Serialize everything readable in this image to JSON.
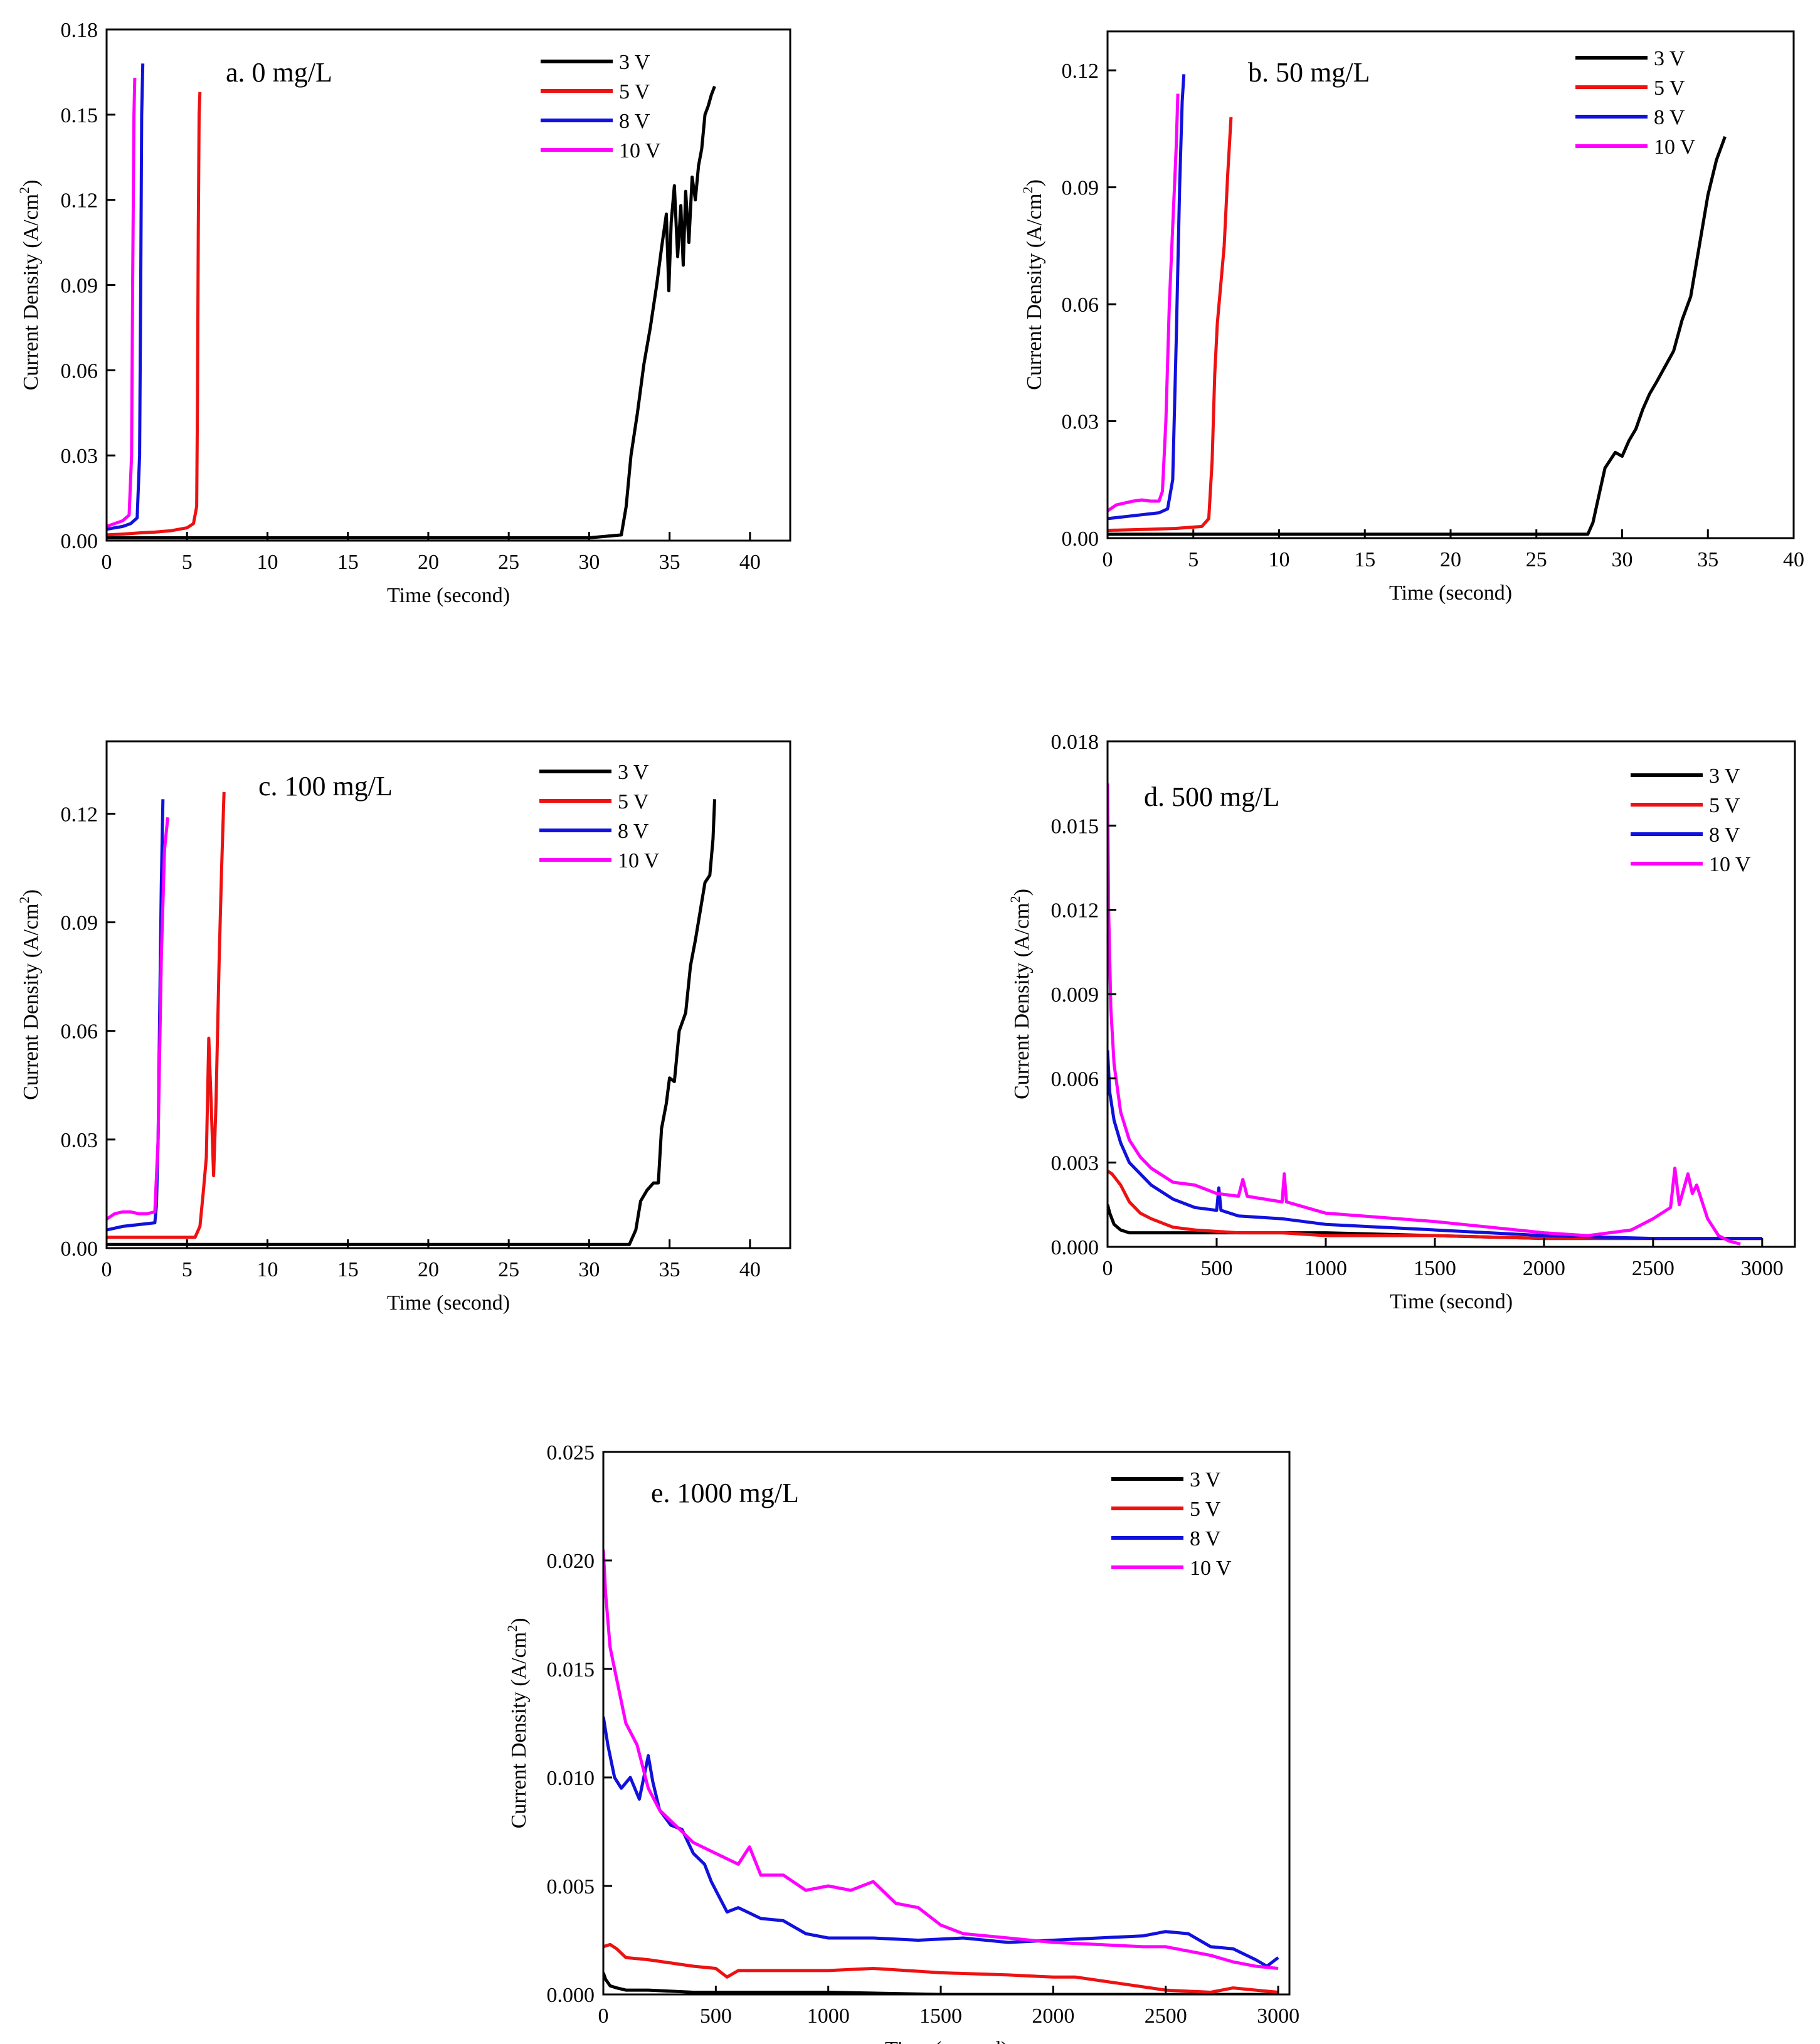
{
  "figure": {
    "line_colors": {
      "3 V": "#000000",
      "5 V": "#ee1111",
      "8 V": "#1111dd",
      "10 V": "#ff00ff"
    }
  },
  "chart_data": [
    {
      "id": "a",
      "type": "line",
      "title": "a. 0 mg/L",
      "xlabel": "Time (second)",
      "ylabel": "Current Density (A/cm",
      "ylabel_sup": "2",
      "ylabel_end": ")",
      "xlim": [
        0,
        42.5
      ],
      "ylim": [
        0,
        0.18
      ],
      "xticks": [
        0,
        5,
        10,
        15,
        20,
        25,
        30,
        35,
        40
      ],
      "xtick_labels": [
        "0",
        "5",
        "10",
        "15",
        "20",
        "25",
        "30",
        "35",
        "40"
      ],
      "yticks": [
        0,
        0.03,
        0.06,
        0.09,
        0.12,
        0.15,
        0.18
      ],
      "ytick_labels": [
        "0.00",
        "0.03",
        "0.06",
        "0.09",
        "0.12",
        "0.15",
        "0.18"
      ],
      "legend": [
        "3 V",
        "5 V",
        "8 V",
        "10 V"
      ],
      "series": [
        {
          "name": "3 V",
          "x": [
            0,
            10,
            20,
            30,
            32.0,
            32.3,
            32.6,
            33.0,
            33.4,
            33.8,
            34.2,
            34.5,
            34.8,
            34.95,
            35.1,
            35.3,
            35.5,
            35.7,
            35.85,
            36.0,
            36.2,
            36.4,
            36.6,
            36.8,
            37.0,
            37.2,
            37.4,
            37.6,
            37.8
          ],
          "y": [
            0.001,
            0.001,
            0.001,
            0.001,
            0.002,
            0.012,
            0.03,
            0.045,
            0.062,
            0.075,
            0.09,
            0.103,
            0.115,
            0.088,
            0.112,
            0.125,
            0.1,
            0.118,
            0.097,
            0.123,
            0.105,
            0.128,
            0.12,
            0.132,
            0.138,
            0.15,
            0.153,
            0.157,
            0.16
          ]
        },
        {
          "name": "5 V",
          "x": [
            0,
            1,
            2,
            3,
            4,
            5,
            5.4,
            5.6,
            5.65,
            5.7,
            5.75,
            5.8
          ],
          "y": [
            0.002,
            0.0023,
            0.0027,
            0.003,
            0.0035,
            0.0045,
            0.006,
            0.012,
            0.05,
            0.11,
            0.15,
            0.158
          ]
        },
        {
          "name": "8 V",
          "x": [
            0,
            0.5,
            1.0,
            1.5,
            1.9,
            2.05,
            2.12,
            2.18,
            2.25
          ],
          "y": [
            0.004,
            0.0045,
            0.005,
            0.006,
            0.008,
            0.03,
            0.09,
            0.15,
            0.168
          ]
        },
        {
          "name": "10 V",
          "x": [
            0,
            0.5,
            1.0,
            1.4,
            1.55,
            1.62,
            1.7,
            1.75
          ],
          "y": [
            0.005,
            0.006,
            0.007,
            0.009,
            0.03,
            0.09,
            0.15,
            0.163
          ]
        }
      ]
    },
    {
      "id": "b",
      "type": "line",
      "title": "b. 50 mg/L",
      "xlabel": "Time (second)",
      "ylabel": "Current Density (A/cm",
      "ylabel_sup": "2",
      "ylabel_end": ")",
      "xlim": [
        0,
        40
      ],
      "ylim": [
        0,
        0.13
      ],
      "xticks": [
        0,
        5,
        10,
        15,
        20,
        25,
        30,
        35,
        40
      ],
      "xtick_labels": [
        "0",
        "5",
        "10",
        "15",
        "20",
        "25",
        "30",
        "35",
        "40"
      ],
      "yticks": [
        0,
        0.03,
        0.06,
        0.09,
        0.12
      ],
      "ytick_labels": [
        "0.00",
        "0.03",
        "0.06",
        "0.09",
        "0.12"
      ],
      "legend": [
        "3 V",
        "5 V",
        "8 V",
        "10 V"
      ],
      "series": [
        {
          "name": "3 V",
          "x": [
            0,
            10,
            20,
            28.0,
            28.3,
            28.7,
            29.0,
            29.3,
            29.6,
            30.0,
            30.4,
            30.8,
            31.2,
            31.6,
            32.0,
            32.5,
            33.0,
            33.5,
            34.0,
            34.5,
            35.0,
            35.5,
            36.0
          ],
          "y": [
            0.001,
            0.001,
            0.001,
            0.001,
            0.004,
            0.012,
            0.018,
            0.02,
            0.022,
            0.021,
            0.025,
            0.028,
            0.033,
            0.037,
            0.04,
            0.044,
            0.048,
            0.056,
            0.062,
            0.075,
            0.088,
            0.097,
            0.103
          ]
        },
        {
          "name": "5 V",
          "x": [
            0,
            2,
            4,
            5.5,
            5.9,
            6.1,
            6.25,
            6.4,
            6.6,
            6.8,
            7.0,
            7.2
          ],
          "y": [
            0.002,
            0.0022,
            0.0025,
            0.003,
            0.005,
            0.02,
            0.042,
            0.055,
            0.065,
            0.075,
            0.093,
            0.108
          ]
        },
        {
          "name": "8 V",
          "x": [
            0,
            1,
            2,
            3,
            3.5,
            3.8,
            4.0,
            4.2,
            4.35,
            4.45
          ],
          "y": [
            0.005,
            0.0055,
            0.006,
            0.0065,
            0.0075,
            0.015,
            0.05,
            0.09,
            0.112,
            0.119
          ]
        },
        {
          "name": "10 V",
          "x": [
            0,
            0.5,
            1.0,
            1.5,
            2.0,
            2.5,
            3.0,
            3.2,
            3.4,
            3.6,
            3.8,
            4.0,
            4.1
          ],
          "y": [
            0.007,
            0.0085,
            0.009,
            0.0095,
            0.0098,
            0.0095,
            0.0095,
            0.012,
            0.03,
            0.06,
            0.08,
            0.1,
            0.114
          ]
        }
      ]
    },
    {
      "id": "c",
      "type": "line",
      "title": "c. 100 mg/L",
      "xlabel": "Time (second)",
      "ylabel": "Current Density (A/cm",
      "ylabel_sup": "2",
      "ylabel_end": ")",
      "xlim": [
        0,
        42.5
      ],
      "ylim": [
        0,
        0.14
      ],
      "xticks": [
        0,
        5,
        10,
        15,
        20,
        25,
        30,
        35,
        40
      ],
      "xtick_labels": [
        "0",
        "5",
        "10",
        "15",
        "20",
        "25",
        "30",
        "35",
        "40"
      ],
      "yticks": [
        0,
        0.03,
        0.06,
        0.09,
        0.12
      ],
      "ytick_labels": [
        "0.00",
        "0.03",
        "0.06",
        "0.09",
        "0.12"
      ],
      "legend": [
        "3 V",
        "5 V",
        "8 V",
        "10 V"
      ],
      "series": [
        {
          "name": "3 V",
          "x": [
            0,
            10,
            20,
            30,
            32.5,
            32.9,
            33.2,
            33.6,
            34.0,
            34.3,
            34.5,
            34.8,
            35.0,
            35.3,
            35.6,
            36.0,
            36.3,
            36.6,
            36.9,
            37.2,
            37.5,
            37.7,
            37.8
          ],
          "y": [
            0.001,
            0.001,
            0.001,
            0.001,
            0.001,
            0.005,
            0.013,
            0.016,
            0.018,
            0.018,
            0.033,
            0.04,
            0.047,
            0.046,
            0.06,
            0.065,
            0.078,
            0.085,
            0.093,
            0.101,
            0.103,
            0.113,
            0.124
          ]
        },
        {
          "name": "5 V",
          "x": [
            0,
            2,
            4,
            5.5,
            5.8,
            6.0,
            6.2,
            6.35,
            6.5,
            6.65,
            6.8,
            7.0,
            7.15,
            7.3
          ],
          "y": [
            0.003,
            0.003,
            0.003,
            0.003,
            0.006,
            0.015,
            0.025,
            0.058,
            0.04,
            0.02,
            0.04,
            0.08,
            0.105,
            0.126
          ]
        },
        {
          "name": "8 V",
          "x": [
            0,
            1,
            2,
            3.0,
            3.1,
            3.2,
            3.3,
            3.4,
            3.5
          ],
          "y": [
            0.005,
            0.006,
            0.0065,
            0.007,
            0.012,
            0.03,
            0.065,
            0.1,
            0.124
          ]
        },
        {
          "name": "10 V",
          "x": [
            0,
            0.5,
            1.0,
            1.5,
            2.0,
            2.5,
            3.0,
            3.2,
            3.4,
            3.6,
            3.8
          ],
          "y": [
            0.008,
            0.0095,
            0.01,
            0.01,
            0.0095,
            0.0095,
            0.01,
            0.03,
            0.08,
            0.11,
            0.119
          ]
        }
      ]
    },
    {
      "id": "d",
      "type": "line",
      "title": "d. 500 mg/L",
      "xlabel": "Time (second)",
      "ylabel": "Current Density (A/cm",
      "ylabel_sup": "2",
      "ylabel_end": ")",
      "xlim": [
        0,
        3150
      ],
      "ylim": [
        0,
        0.018
      ],
      "xticks": [
        0,
        500,
        1000,
        1500,
        2000,
        2500,
        3000
      ],
      "xtick_labels": [
        "0",
        "500",
        "1000",
        "1500",
        "2000",
        "2500",
        "3000"
      ],
      "yticks": [
        0,
        0.003,
        0.006,
        0.009,
        0.012,
        0.015,
        0.018
      ],
      "ytick_labels": [
        "0.000",
        "0.003",
        "0.006",
        "0.009",
        "0.012",
        "0.015",
        "0.018"
      ],
      "legend": [
        "3 V",
        "5 V",
        "8 V",
        "10 V"
      ],
      "series": [
        {
          "name": "3 V",
          "x": [
            0,
            10,
            30,
            60,
            100,
            200,
            400,
            600,
            1000,
            1500,
            2000,
            2500,
            3000
          ],
          "y": [
            0.0015,
            0.0012,
            0.0008,
            0.0006,
            0.0005,
            0.0005,
            0.0005,
            0.0005,
            0.0005,
            0.0004,
            0.0003,
            0.0003,
            0.0003
          ]
        },
        {
          "name": "5 V",
          "x": [
            0,
            20,
            60,
            100,
            150,
            200,
            300,
            400,
            600,
            800,
            1000,
            1500,
            2000,
            2500,
            3000
          ],
          "y": [
            0.0027,
            0.0026,
            0.0022,
            0.0016,
            0.0012,
            0.001,
            0.0007,
            0.0006,
            0.0005,
            0.0005,
            0.0004,
            0.0004,
            0.0003,
            0.0003,
            0.0003
          ]
        },
        {
          "name": "8 V",
          "x": [
            0,
            10,
            30,
            60,
            100,
            150,
            200,
            300,
            400,
            500,
            510,
            520,
            600,
            800,
            1000,
            1500,
            2000,
            2500,
            3000
          ],
          "y": [
            0.007,
            0.0055,
            0.0045,
            0.0037,
            0.003,
            0.0026,
            0.0022,
            0.0017,
            0.0014,
            0.0013,
            0.0021,
            0.0013,
            0.0011,
            0.001,
            0.0008,
            0.0006,
            0.0004,
            0.0003,
            0.0003
          ]
        },
        {
          "name": "10 V",
          "x": [
            0,
            5,
            15,
            30,
            60,
            100,
            150,
            200,
            300,
            400,
            500,
            600,
            620,
            640,
            800,
            810,
            820,
            1000,
            1500,
            2000,
            2200,
            2400,
            2500,
            2580,
            2600,
            2620,
            2660,
            2680,
            2700,
            2750,
            2800,
            2850,
            2900
          ],
          "y": [
            0.0165,
            0.012,
            0.0085,
            0.0065,
            0.0048,
            0.0038,
            0.0032,
            0.0028,
            0.0023,
            0.0022,
            0.0019,
            0.0018,
            0.0024,
            0.0018,
            0.0016,
            0.0026,
            0.0016,
            0.0012,
            0.0009,
            0.0005,
            0.0004,
            0.0006,
            0.001,
            0.0014,
            0.0028,
            0.0015,
            0.0026,
            0.0019,
            0.0022,
            0.001,
            0.0004,
            0.0002,
            0.0001
          ]
        }
      ]
    },
    {
      "id": "e",
      "type": "line",
      "title": "e. 1000 mg/L",
      "xlabel": "Time (second)",
      "ylabel": "Current Density (A/cm",
      "ylabel_sup": "2",
      "ylabel_end": ")",
      "xlim": [
        0,
        3050
      ],
      "ylim": [
        0,
        0.025
      ],
      "xticks": [
        0,
        500,
        1000,
        1500,
        2000,
        2500,
        3000
      ],
      "xtick_labels": [
        "0",
        "500",
        "1000",
        "1500",
        "2000",
        "2500",
        "3000"
      ],
      "yticks": [
        0,
        0.005,
        0.01,
        0.015,
        0.02,
        0.025
      ],
      "ytick_labels": [
        "0.000",
        "0.005",
        "0.010",
        "0.015",
        "0.020",
        "0.025"
      ],
      "legend": [
        "3 V",
        "5 V",
        "8 V",
        "10 V"
      ],
      "series": [
        {
          "name": "3 V",
          "x": [
            0,
            10,
            30,
            60,
            100,
            200,
            400,
            700,
            1000,
            1500,
            2000,
            2500,
            3000
          ],
          "y": [
            0.001,
            0.0007,
            0.0004,
            0.0003,
            0.0002,
            0.0002,
            0.0001,
            0.0001,
            0.0001,
            0.0,
            0.0,
            0.0,
            0.0
          ]
        },
        {
          "name": "5 V",
          "x": [
            0,
            30,
            60,
            100,
            200,
            400,
            500,
            550,
            600,
            800,
            1000,
            1200,
            1500,
            1800,
            2000,
            2100,
            2300,
            2500,
            2700,
            2800,
            2900,
            3000
          ],
          "y": [
            0.0022,
            0.0023,
            0.0021,
            0.0017,
            0.0016,
            0.0013,
            0.0012,
            0.0008,
            0.0011,
            0.0011,
            0.0011,
            0.0012,
            0.001,
            0.0009,
            0.0008,
            0.0008,
            0.0005,
            0.0002,
            0.0001,
            0.0003,
            0.0002,
            0.0001
          ]
        },
        {
          "name": "8 V",
          "x": [
            0,
            20,
            50,
            80,
            120,
            160,
            200,
            220,
            250,
            300,
            350,
            400,
            450,
            480,
            500,
            550,
            600,
            700,
            800,
            900,
            1000,
            1200,
            1400,
            1600,
            1800,
            2000,
            2200,
            2400,
            2500,
            2600,
            2700,
            2800,
            2900,
            2950,
            3000
          ],
          "y": [
            0.0128,
            0.0115,
            0.01,
            0.0095,
            0.01,
            0.009,
            0.011,
            0.0098,
            0.0085,
            0.0078,
            0.0076,
            0.0065,
            0.006,
            0.0052,
            0.0048,
            0.0038,
            0.004,
            0.0035,
            0.0034,
            0.0028,
            0.0026,
            0.0026,
            0.0025,
            0.0026,
            0.0024,
            0.0025,
            0.0026,
            0.0027,
            0.0029,
            0.0028,
            0.0022,
            0.0021,
            0.0016,
            0.0013,
            0.0017
          ]
        },
        {
          "name": "10 V",
          "x": [
            0,
            10,
            30,
            60,
            100,
            150,
            200,
            250,
            300,
            350,
            400,
            500,
            600,
            650,
            700,
            800,
            900,
            1000,
            1100,
            1200,
            1300,
            1400,
            1500,
            1600,
            1800,
            2000,
            2200,
            2400,
            2500,
            2600,
            2700,
            2800,
            2900,
            3000
          ],
          "y": [
            0.0205,
            0.0185,
            0.016,
            0.0145,
            0.0125,
            0.0115,
            0.0095,
            0.0085,
            0.008,
            0.0075,
            0.007,
            0.0065,
            0.006,
            0.0068,
            0.0055,
            0.0055,
            0.0048,
            0.005,
            0.0048,
            0.0052,
            0.0042,
            0.004,
            0.0032,
            0.0028,
            0.0026,
            0.0024,
            0.0023,
            0.0022,
            0.0022,
            0.002,
            0.0018,
            0.0015,
            0.0013,
            0.0012
          ]
        }
      ]
    }
  ]
}
